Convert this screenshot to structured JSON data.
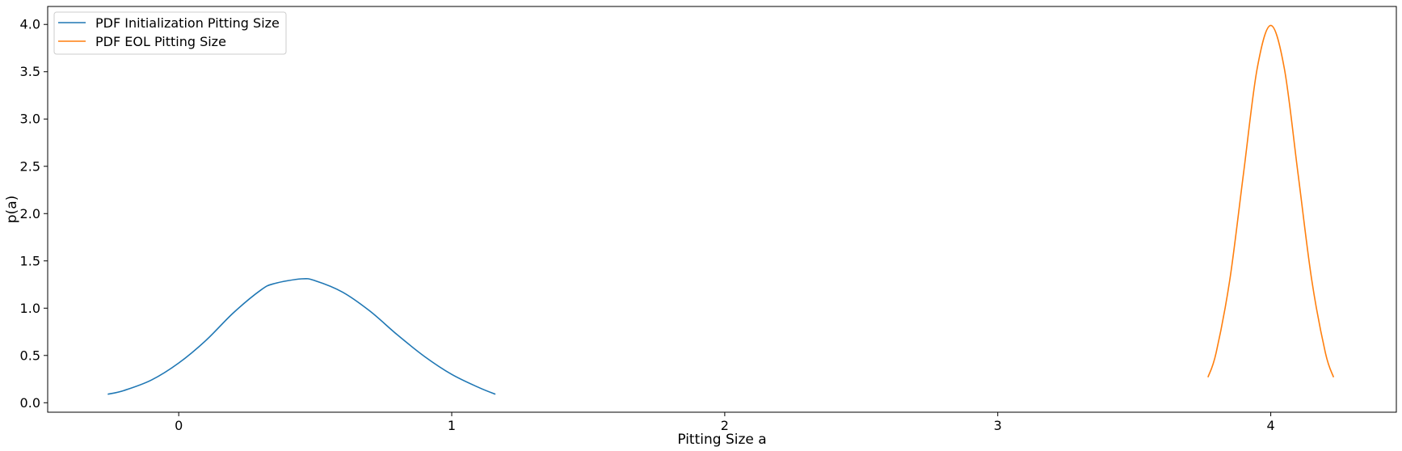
{
  "chart_data": {
    "type": "line",
    "title": "",
    "xlabel": "Pitting Size a",
    "ylabel": "p(a)",
    "xlim": [
      -0.48,
      4.46
    ],
    "ylim": [
      -0.1,
      4.19
    ],
    "xticks": [
      0,
      1,
      2,
      3,
      4
    ],
    "xtick_labels": [
      "0",
      "1",
      "2",
      "3",
      "4"
    ],
    "yticks": [
      0.0,
      0.5,
      1.0,
      1.5,
      2.0,
      2.5,
      3.0,
      3.5,
      4.0
    ],
    "ytick_labels": [
      "0.0",
      "0.5",
      "1.0",
      "1.5",
      "2.0",
      "2.5",
      "3.0",
      "3.5",
      "4.0"
    ],
    "grid": false,
    "legend_position": "top-left",
    "series": [
      {
        "name": "PDF Initialization Pitting Size",
        "color": "#1f77b4",
        "x": [
          -0.26,
          -0.2,
          -0.1,
          0.0,
          0.1,
          0.2,
          0.3,
          0.35,
          0.45,
          0.5,
          0.6,
          0.7,
          0.8,
          0.9,
          1.0,
          1.1,
          1.16
        ],
        "y": [
          0.09,
          0.13,
          0.24,
          0.42,
          0.66,
          0.95,
          1.19,
          1.26,
          1.31,
          1.29,
          1.17,
          0.97,
          0.72,
          0.49,
          0.3,
          0.16,
          0.09
        ]
      },
      {
        "name": "PDF EOL Pitting Size",
        "color": "#ff7f0e",
        "x": [
          3.77,
          3.8,
          3.85,
          3.9,
          3.95,
          4.0,
          4.05,
          4.1,
          4.15,
          4.2,
          4.23
        ],
        "y": [
          0.27,
          0.53,
          1.3,
          2.42,
          3.53,
          3.99,
          3.53,
          2.42,
          1.3,
          0.53,
          0.27
        ]
      }
    ]
  }
}
